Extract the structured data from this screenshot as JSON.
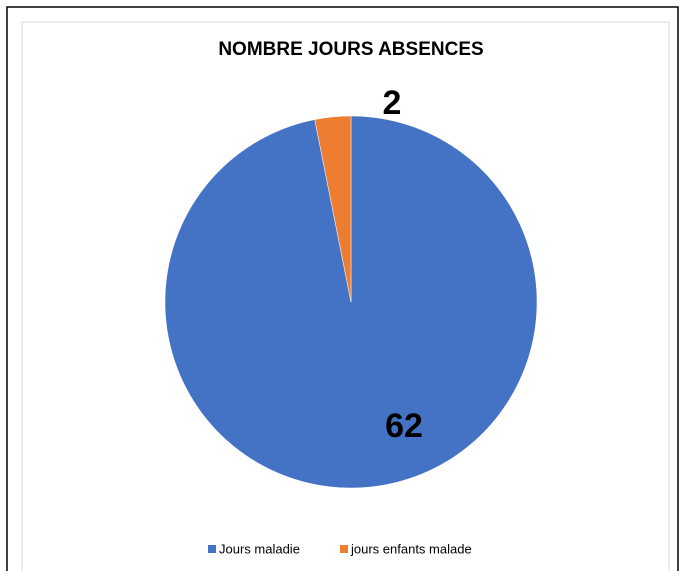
{
  "chart_data": {
    "type": "pie",
    "title": "NOMBRE JOURS ABSENCES",
    "categories": [
      "Jours maladie",
      "jours enfants malade"
    ],
    "values": [
      62,
      2
    ],
    "colors": [
      "#4472c4",
      "#ed7d31"
    ],
    "legend": "bottom"
  }
}
